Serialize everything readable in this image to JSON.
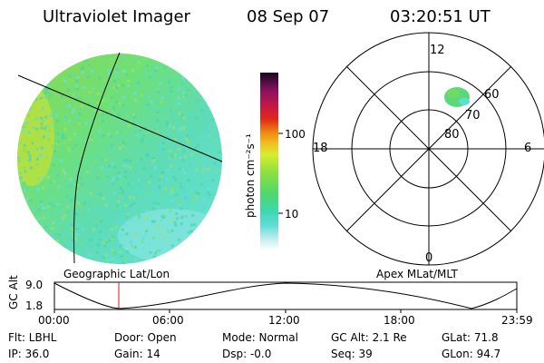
{
  "header": {
    "instrument": "Ultraviolet Imager",
    "date": "08 Sep 07",
    "time": "03:20:51 UT"
  },
  "colorbar": {
    "unit": "photon cm⁻²s⁻¹",
    "ticks": [
      "100",
      "10"
    ]
  },
  "polar": {
    "mlt_labels": {
      "top": "12",
      "left": "18",
      "right": "6",
      "bottom": "0"
    },
    "lat_labels": [
      "60",
      "70",
      "80"
    ]
  },
  "labels": {
    "geo": "Geographic Lat/Lon",
    "apex": "Apex MLat/MLT"
  },
  "altitude_plot": {
    "ylabel": "GC Alt",
    "yticks": [
      "9.0",
      "1.8"
    ],
    "xticks": [
      "00:00",
      "06:00",
      "12:00",
      "18:00",
      "23:59"
    ],
    "marker_time": "03:20:51"
  },
  "status": {
    "flt": "Flt: LBHL",
    "ip": "IP: 36.0",
    "door": "Door: Open",
    "gain": "Gain: 14",
    "mode": "Mode: Normal",
    "dsp": "Dsp:   -0.0",
    "gcalt": "GC Alt: 2.1 Re",
    "seq": "Seq: 39",
    "glat": "GLat: 71.8",
    "glon": "GLon:  94.7"
  },
  "colors": {
    "disk_main": "#5fdc8a",
    "disk_cyan": "#5ee0d8",
    "disk_yellow": "#c8e43a",
    "marker": "#d21e1e"
  }
}
